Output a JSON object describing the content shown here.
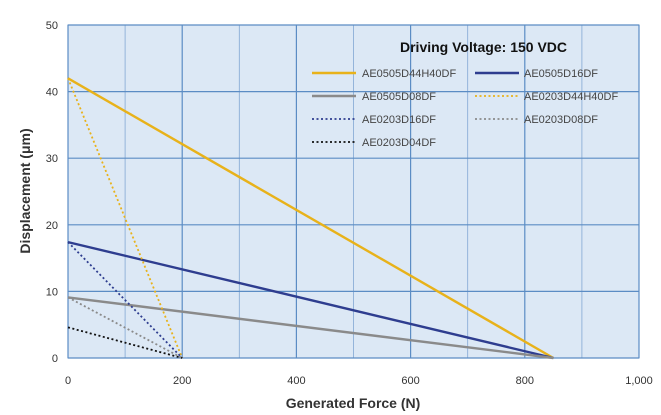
{
  "chart_data": {
    "type": "line",
    "title": "",
    "xlabel": "Generated Force (N)",
    "ylabel": "Displacement (μm)",
    "xlim": [
      0,
      1000
    ],
    "ylim": [
      0,
      50
    ],
    "x_ticks": [
      0,
      200,
      400,
      600,
      800,
      1000
    ],
    "x_tick_labels": [
      "0",
      "200",
      "400",
      "600",
      "800",
      "1,000"
    ],
    "y_ticks": [
      0,
      10,
      20,
      30,
      40,
      50
    ],
    "y_tick_labels": [
      "0",
      "10",
      "20",
      "30",
      "40",
      "50"
    ],
    "grid": true,
    "legend_position": "top-right",
    "legend_title": "Driving Voltage: 150 VDC",
    "series": [
      {
        "name": "AE0505D44H40DF",
        "color": "#E8B21A",
        "style": "solid",
        "x": [
          0,
          850
        ],
        "y": [
          42,
          0
        ]
      },
      {
        "name": "AE0505D16DF",
        "color": "#2E3D8F",
        "style": "solid",
        "x": [
          0,
          850
        ],
        "y": [
          17.4,
          0
        ]
      },
      {
        "name": "AE0505D08DF",
        "color": "#8A8A8A",
        "style": "solid",
        "x": [
          0,
          850
        ],
        "y": [
          9.1,
          0
        ]
      },
      {
        "name": "AE0203D44H40DF",
        "color": "#E8B21A",
        "style": "dotted",
        "x": [
          0,
          200
        ],
        "y": [
          42,
          0
        ]
      },
      {
        "name": "AE0203D16DF",
        "color": "#2E3D8F",
        "style": "dotted",
        "x": [
          0,
          200
        ],
        "y": [
          17.4,
          0
        ]
      },
      {
        "name": "AE0203D08DF",
        "color": "#8A8A8A",
        "style": "dotted",
        "x": [
          0,
          200
        ],
        "y": [
          9.1,
          0
        ]
      },
      {
        "name": "AE0203D04DF",
        "color": "#111111",
        "style": "dotted",
        "x": [
          0,
          200
        ],
        "y": [
          4.6,
          0
        ]
      }
    ]
  },
  "colors": {
    "plot_background": "#DCE8F5",
    "grid_line": "#5B8CC4",
    "plot_border": "#5B8CC4"
  }
}
